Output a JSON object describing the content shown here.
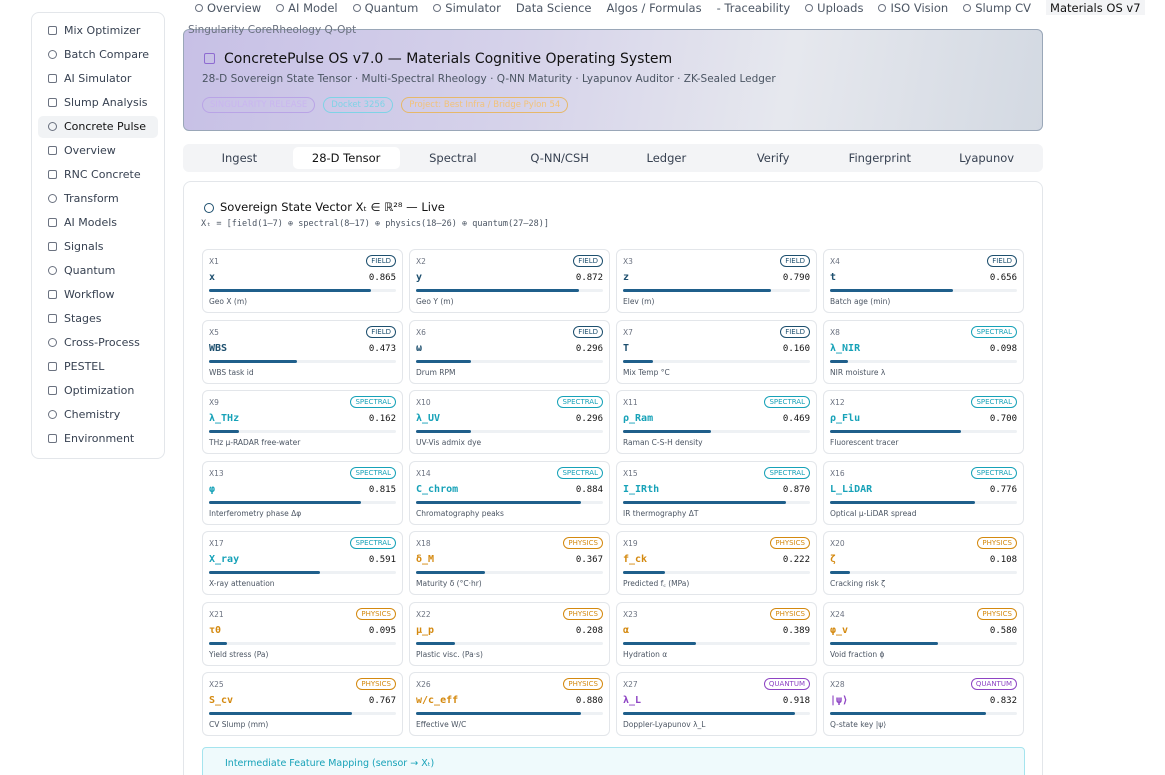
{
  "sidebar": {
    "items": [
      "Mix Optimizer",
      "Batch Compare",
      "AI Simulator",
      "Slump Analysis",
      "Concrete Pulse",
      "Overview",
      "RNC Concrete",
      "Transform",
      "AI Models",
      "Signals",
      "Quantum",
      "Workflow",
      "Stages",
      "Cross-Process",
      "PESTEL",
      "Optimization",
      "Chemistry",
      "Environment"
    ],
    "active": 4
  },
  "topnav": {
    "tabs": [
      "Overview",
      "AI Model",
      "Quantum",
      "Simulator",
      "Data Science",
      "Algos / Formulas",
      "- Traceability",
      "Uploads",
      "ISO Vision",
      "Slump CV",
      "Materials OS v7"
    ],
    "active": 10
  },
  "breadcrumb": "Singularity CoreRheology Q-Opt",
  "header": {
    "title": "ConcretePulse OS v7.0 — Materials Cognitive Operating System",
    "subtitle": "28-D Sovereign State Tensor · Multi-Spectral Rheology · Q-NN Maturity · Lyapunov Auditor · ZK-Sealed Ledger",
    "badges": [
      "SINGULARITY RELEASE",
      "Docket 3256",
      "Project: Best Infra / Bridge Pylon 54"
    ]
  },
  "subtabs": {
    "items": [
      "Ingest",
      "28-D Tensor",
      "Spectral",
      "Q-NN/CSH",
      "Ledger",
      "Verify",
      "Fingerprint",
      "Lyapunov"
    ],
    "active": 1
  },
  "panel": {
    "title": "Sovereign State Vector Xₜ ∈ ℝ²⁸ — Live",
    "formula": "Xₜ = [field(1–7) ⊕ spectral(8–17) ⊕ physics(18–26) ⊕ quantum(27–28)]",
    "cards": [
      {
        "id": "X1",
        "tag": "FIELD",
        "symbol": "x",
        "value": 0.865,
        "value_label": "0.865",
        "desc": "Geo X (m)"
      },
      {
        "id": "X2",
        "tag": "FIELD",
        "symbol": "y",
        "value": 0.872,
        "value_label": "0.872",
        "desc": "Geo Y (m)"
      },
      {
        "id": "X3",
        "tag": "FIELD",
        "symbol": "z",
        "value": 0.79,
        "value_label": "0.790",
        "desc": "Elev (m)"
      },
      {
        "id": "X4",
        "tag": "FIELD",
        "symbol": "t",
        "value": 0.656,
        "value_label": "0.656",
        "desc": "Batch age (min)"
      },
      {
        "id": "X5",
        "tag": "FIELD",
        "symbol": "WBS",
        "value": 0.473,
        "value_label": "0.473",
        "desc": "WBS task id"
      },
      {
        "id": "X6",
        "tag": "FIELD",
        "symbol": "ω",
        "value": 0.296,
        "value_label": "0.296",
        "desc": "Drum RPM"
      },
      {
        "id": "X7",
        "tag": "FIELD",
        "symbol": "T",
        "value": 0.16,
        "value_label": "0.160",
        "desc": "Mix Temp °C"
      },
      {
        "id": "X8",
        "tag": "SPECTRAL",
        "symbol": "λ_NIR",
        "value": 0.098,
        "value_label": "0.098",
        "desc": "NIR moisture λ"
      },
      {
        "id": "X9",
        "tag": "SPECTRAL",
        "symbol": "λ_THz",
        "value": 0.162,
        "value_label": "0.162",
        "desc": "THz μ-RADAR free-water"
      },
      {
        "id": "X10",
        "tag": "SPECTRAL",
        "symbol": "λ_UV",
        "value": 0.296,
        "value_label": "0.296",
        "desc": "UV-Vis admix dye"
      },
      {
        "id": "X11",
        "tag": "SPECTRAL",
        "symbol": "ρ_Ram",
        "value": 0.469,
        "value_label": "0.469",
        "desc": "Raman C-S-H density"
      },
      {
        "id": "X12",
        "tag": "SPECTRAL",
        "symbol": "ρ_Flu",
        "value": 0.7,
        "value_label": "0.700",
        "desc": "Fluorescent tracer"
      },
      {
        "id": "X13",
        "tag": "SPECTRAL",
        "symbol": "φ",
        "value": 0.815,
        "value_label": "0.815",
        "desc": "Interferometry phase Δφ"
      },
      {
        "id": "X14",
        "tag": "SPECTRAL",
        "symbol": "C_chrom",
        "value": 0.884,
        "value_label": "0.884",
        "desc": "Chromatography peaks"
      },
      {
        "id": "X15",
        "tag": "SPECTRAL",
        "symbol": "I_IRth",
        "value": 0.87,
        "value_label": "0.870",
        "desc": "IR thermography ΔT"
      },
      {
        "id": "X16",
        "tag": "SPECTRAL",
        "symbol": "L_LiDAR",
        "value": 0.776,
        "value_label": "0.776",
        "desc": "Optical μ-LiDAR spread"
      },
      {
        "id": "X17",
        "tag": "SPECTRAL",
        "symbol": "X_ray",
        "value": 0.591,
        "value_label": "0.591",
        "desc": "X-ray attenuation"
      },
      {
        "id": "X18",
        "tag": "PHYSICS",
        "symbol": "δ_M",
        "value": 0.367,
        "value_label": "0.367",
        "desc": "Maturity δ (°C·hr)"
      },
      {
        "id": "X19",
        "tag": "PHYSICS",
        "symbol": "f_ck",
        "value": 0.222,
        "value_label": "0.222",
        "desc": "Predicted f꜀ (MPa)"
      },
      {
        "id": "X20",
        "tag": "PHYSICS",
        "symbol": "ζ",
        "value": 0.108,
        "value_label": "0.108",
        "desc": "Cracking risk ζ"
      },
      {
        "id": "X21",
        "tag": "PHYSICS",
        "symbol": "τ0",
        "value": 0.095,
        "value_label": "0.095",
        "desc": "Yield stress (Pa)"
      },
      {
        "id": "X22",
        "tag": "PHYSICS",
        "symbol": "μ_p",
        "value": 0.208,
        "value_label": "0.208",
        "desc": "Plastic visc. (Pa·s)"
      },
      {
        "id": "X23",
        "tag": "PHYSICS",
        "symbol": "α",
        "value": 0.389,
        "value_label": "0.389",
        "desc": "Hydration α"
      },
      {
        "id": "X24",
        "tag": "PHYSICS",
        "symbol": "φ_v",
        "value": 0.58,
        "value_label": "0.580",
        "desc": "Void fraction ϕ"
      },
      {
        "id": "X25",
        "tag": "PHYSICS",
        "symbol": "S_cv",
        "value": 0.767,
        "value_label": "0.767",
        "desc": "CV Slump (mm)"
      },
      {
        "id": "X26",
        "tag": "PHYSICS",
        "symbol": "w/c_eff",
        "value": 0.88,
        "value_label": "0.880",
        "desc": "Effective W/C"
      },
      {
        "id": "X27",
        "tag": "QUANTUM",
        "symbol": "λ_L",
        "value": 0.918,
        "value_label": "0.918",
        "desc": "Doppler-Lyapunov λ_L"
      },
      {
        "id": "X28",
        "tag": "QUANTUM",
        "symbol": "|ψ⟩",
        "value": 0.832,
        "value_label": "0.832",
        "desc": "Q-state key |ψ⟩"
      }
    ],
    "tag_colors": {
      "FIELD": "#1d4f6e",
      "SPECTRAL": "#17a2b8",
      "PHYSICS": "#d4890f",
      "QUANTUM": "#8e44c4"
    },
    "bar_color": "#1f5f8b",
    "footer": "Intermediate Feature Mapping (sensor → Xₜ)"
  }
}
